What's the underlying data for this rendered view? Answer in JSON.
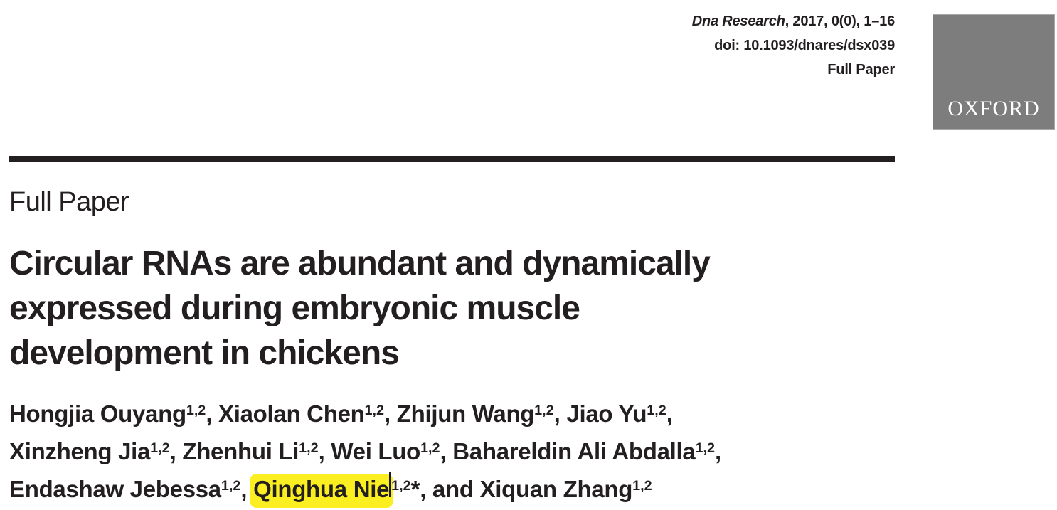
{
  "page": {
    "background": "#ffffff",
    "ink_color": "#231f20"
  },
  "masthead": {
    "citation_line": [
      {
        "t": "Dna Research",
        "italic": true
      },
      {
        "t": ", 2017, 0(0), 1–16"
      }
    ],
    "doi_line": "doi: 10.1093/dnares/dsx039",
    "category_line": "Full Paper",
    "publisher_logo": {
      "label": "OXFORD",
      "box_color": "#7d7d7d",
      "text_color": "#ffffff"
    }
  },
  "article": {
    "section_label": "Full Paper",
    "title_lines": [
      "Circular RNAs are abundant and dynamically",
      "expressed during embryonic muscle",
      "development in chickens"
    ],
    "highlight_color": "#fbee21",
    "highlighted_text": "Qinghua Nie",
    "authors_line1": [
      {
        "t": "Hongjia Ouyang"
      },
      {
        "t": "1,2",
        "sup": true
      },
      {
        "t": ", Xiaolan Chen"
      },
      {
        "t": "1,2",
        "sup": true
      },
      {
        "t": ", Zhijun Wang"
      },
      {
        "t": "1,2",
        "sup": true
      },
      {
        "t": ", Jiao Yu"
      },
      {
        "t": "1,2",
        "sup": true
      },
      {
        "t": ","
      }
    ],
    "authors_line2": [
      {
        "t": "Xinzheng Jia"
      },
      {
        "t": "1,2",
        "sup": true
      },
      {
        "t": ", Zhenhui Li"
      },
      {
        "t": "1,2",
        "sup": true
      },
      {
        "t": ", Wei Luo"
      },
      {
        "t": "1,2",
        "sup": true
      },
      {
        "t": ", Bahareldin Ali Abdalla"
      },
      {
        "t": "1,2",
        "sup": true
      },
      {
        "t": ","
      }
    ],
    "authors_line3": [
      {
        "t": "Endashaw Jebessa"
      },
      {
        "t": "1,2",
        "sup": true
      },
      {
        "t": ", "
      },
      {
        "t": "Qinghua Nie",
        "highlight": true
      },
      {
        "caret": true
      },
      {
        "t": "1,2",
        "sup": true
      },
      {
        "t": "*, and Xiquan Zhang"
      },
      {
        "t": "1,2",
        "sup": true
      }
    ]
  }
}
